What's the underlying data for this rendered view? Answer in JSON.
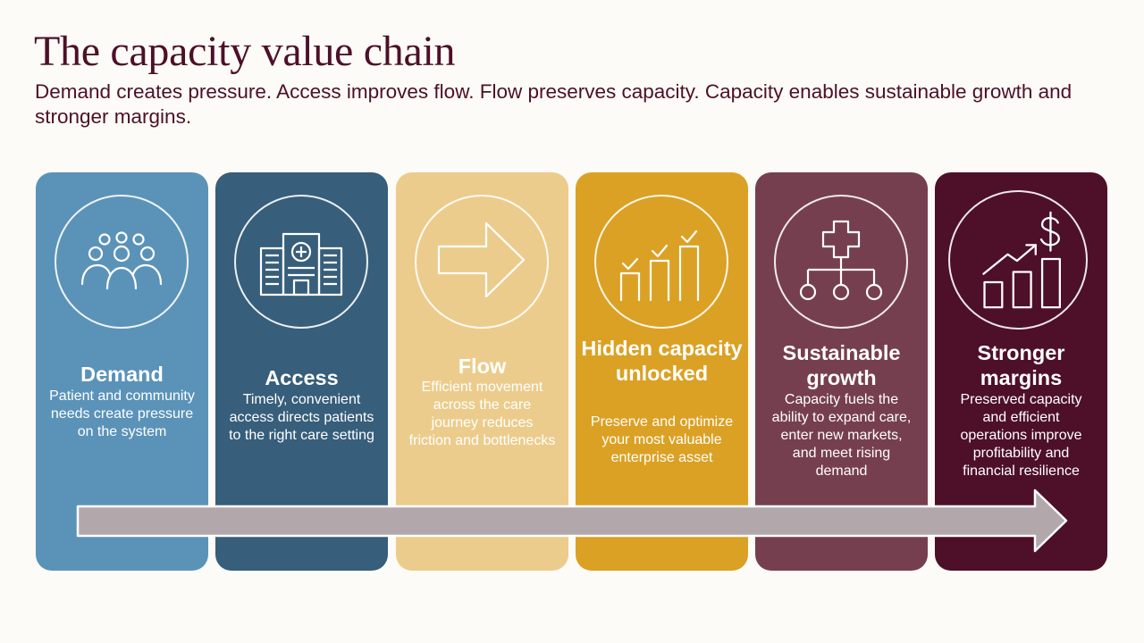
{
  "header": {
    "title": "The capacity value chain",
    "subtitle": "Demand creates pressure. Access improves flow. Flow preserves capacity. Capacity enables sustainable growth and stronger margins."
  },
  "colors": {
    "background": "#fcfbf7",
    "title": "#4d1028",
    "arrow_fill": "#b2a8ab",
    "arrow_stroke": "#ffffff"
  },
  "stages": [
    {
      "title": "Demand",
      "description": "Patient and community needs create pressure on the system",
      "icon": "people-group-icon",
      "color": "#5b93b8",
      "text_color": "#ffffff"
    },
    {
      "title": "Access",
      "description": "Timely, convenient access directs patients to the right care setting",
      "icon": "hospital-building-icon",
      "color": "#375e7a",
      "text_color": "#ffffff"
    },
    {
      "title": "Flow",
      "description": "Efficient movement across the care journey reduces friction and bottlenecks",
      "icon": "arrow-right-icon",
      "color": "#eccc8c",
      "text_color": "#ffffff"
    },
    {
      "title": "Hidden capacity unlocked",
      "description": "Preserve and optimize your most valuable enterprise asset",
      "icon": "bar-chart-checks-icon",
      "color": "#dba124",
      "text_color": "#ffffff"
    },
    {
      "title": "Sustainable growth",
      "description": "Capacity fuels the ability to expand care, enter new markets, and meet rising demand",
      "icon": "network-plus-icon",
      "color": "#763f4f",
      "text_color": "#ffffff"
    },
    {
      "title": "Stronger margins",
      "description": "Preserved capacity and efficient operations improve profitability and financial resilience",
      "icon": "growth-dollar-icon",
      "color": "#4d1028",
      "text_color": "#ffffff"
    }
  ]
}
